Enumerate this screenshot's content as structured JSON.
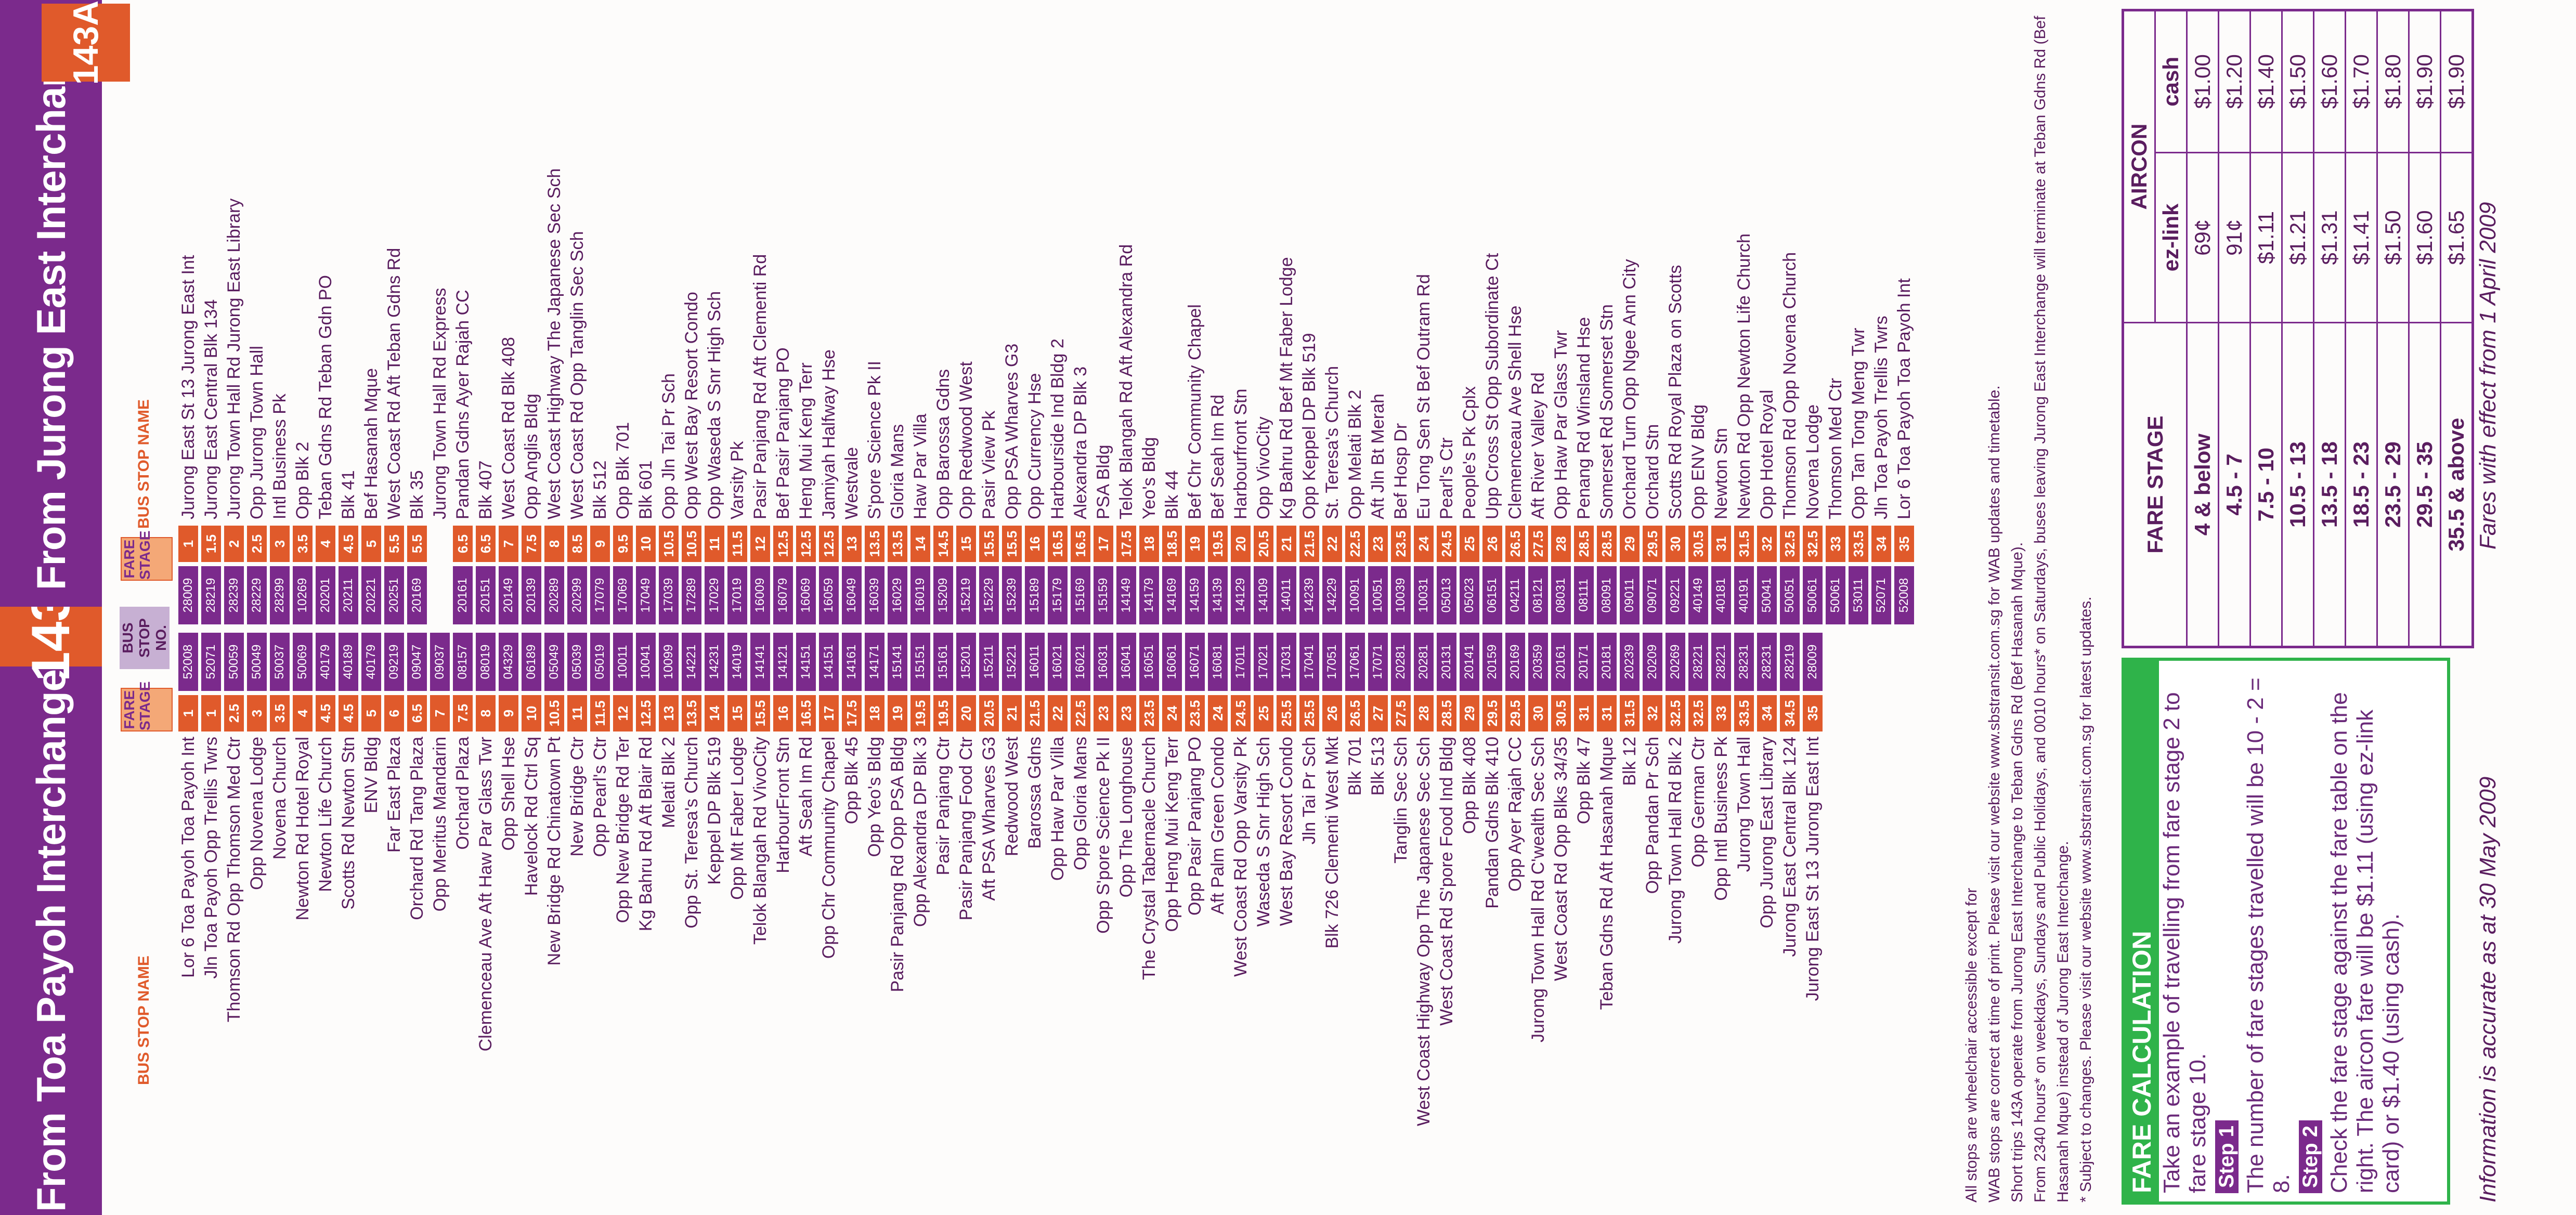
{
  "header": {
    "left_title": "From Toa Payoh Interchange",
    "route_number": "143",
    "right_title": "From Jurong East Interchange",
    "badge_143a": "143A"
  },
  "columns": {
    "bus_stop_name": "BUS STOP NAME",
    "fare_stage": "FARE STAGE",
    "bus_stop_no": "BUS STOP NO."
  },
  "stops": [
    {
      "left": "Lor 6 Toa Payoh Toa Payoh Int",
      "ls": "1",
      "no": "52008",
      "no2": "28009",
      "rs": "1",
      "right": "Jurong East St 13 Jurong East Int"
    },
    {
      "left": "Jln Toa Payoh Opp Trellis Twrs",
      "ls": "1",
      "no": "52071",
      "no2": "28219",
      "rs": "1.5",
      "right": "Jurong East Central Blk 134"
    },
    {
      "left": "Thomson Rd Opp Thomson Med Ctr",
      "ls": "2.5",
      "no": "50059",
      "no2": "28239",
      "rs": "2",
      "right": "Jurong Town Hall Rd Jurong East Library"
    },
    {
      "left": "Opp Novena Lodge",
      "ls": "3",
      "no": "50049",
      "no2": "28229",
      "rs": "2.5",
      "right": "Opp Jurong Town Hall"
    },
    {
      "left": "Novena Church",
      "ls": "3.5",
      "no": "50037",
      "no2": "28299",
      "rs": "3",
      "right": "Intl Business Pk"
    },
    {
      "left": "Newton Rd Hotel Royal",
      "ls": "4",
      "no": "50069",
      "no2": "10269",
      "rs": "3.5",
      "right": "Opp Blk 2"
    },
    {
      "left": "Newton Life Church",
      "ls": "4.5",
      "no": "40179",
      "no2": "20201",
      "rs": "4",
      "right": "Teban Gdns Rd Teban Gdn PO"
    },
    {
      "left": "Scotts Rd Newton Stn",
      "ls": "4.5",
      "no": "40189",
      "no2": "20211",
      "rs": "4.5",
      "right": "Blk 41"
    },
    {
      "left": "ENV Bldg",
      "ls": "5",
      "no": "40179",
      "no2": "20221",
      "rs": "5",
      "right": "Bef Hasanah Mque"
    },
    {
      "left": "Far East Plaza",
      "ls": "6",
      "no": "09219",
      "no2": "20251",
      "rs": "5.5",
      "right": "West Coast Rd Aft Teban Gdns Rd"
    },
    {
      "left": "Orchard Rd Tang Plaza",
      "ls": "6.5",
      "no": "09047",
      "no2": "20169",
      "rs": "5.5",
      "right": "Blk 35"
    },
    {
      "left": "Opp Meritus Mandarin",
      "ls": "7",
      "no": "09037",
      "no2": "",
      "rs": "",
      "right": "Jurong Town Hall Rd Express"
    },
    {
      "left": "Orchard Plaza",
      "ls": "7.5",
      "no": "08157",
      "no2": "20161",
      "rs": "6.5",
      "right": "Pandan Gdns Ayer Rajah CC"
    },
    {
      "left": "Clemenceau Ave Aft Haw Par Glass Twr",
      "ls": "8",
      "no": "08019",
      "no2": "20151",
      "rs": "6.5",
      "right": "Blk 407"
    },
    {
      "left": "Opp Shell Hse",
      "ls": "9",
      "no": "04329",
      "no2": "20149",
      "rs": "7",
      "right": "West Coast Rd Blk 408"
    },
    {
      "left": "Havelock Rd Ctrl Sq",
      "ls": "10",
      "no": "06189",
      "no2": "20139",
      "rs": "7.5",
      "right": "Opp Anglis Bldg"
    },
    {
      "left": "New Bridge Rd Chinatown Pt",
      "ls": "10.5",
      "no": "05049",
      "no2": "20289",
      "rs": "8",
      "right": "West Coast Highway The Japanese Sec Sch"
    },
    {
      "left": "New Bridge Ctr",
      "ls": "11",
      "no": "05039",
      "no2": "20299",
      "rs": "8.5",
      "right": "West Coast Rd Opp Tanglin Sec Sch"
    },
    {
      "left": "Opp Pearl's Ctr",
      "ls": "11.5",
      "no": "05019",
      "no2": "17079",
      "rs": "9",
      "right": "Blk 512"
    },
    {
      "left": "Opp New Bridge Rd Ter",
      "ls": "12",
      "no": "10011",
      "no2": "17069",
      "rs": "9.5",
      "right": "Opp Blk 701"
    },
    {
      "left": "Kg Bahru Rd Aft Blair Rd",
      "ls": "12.5",
      "no": "10041",
      "no2": "17049",
      "rs": "10",
      "right": "Blk 601"
    },
    {
      "left": "Melati Blk 2",
      "ls": "13",
      "no": "10099",
      "no2": "17039",
      "rs": "10.5",
      "right": "Opp Jln Tai Pr Sch"
    },
    {
      "left": "Opp St. Teresa's Church",
      "ls": "13.5",
      "no": "14221",
      "no2": "17289",
      "rs": "10.5",
      "right": "Opp West Bay Resort Condo"
    },
    {
      "left": "Keppel DP Blk 519",
      "ls": "14",
      "no": "14231",
      "no2": "17029",
      "rs": "11",
      "right": "Opp Waseda S Snr High Sch"
    },
    {
      "left": "Opp Mt Faber Lodge",
      "ls": "15",
      "no": "14019",
      "no2": "17019",
      "rs": "11.5",
      "right": "Varsity Pk"
    },
    {
      "left": "Telok Blangah Rd VivoCity",
      "ls": "15.5",
      "no": "14141",
      "no2": "16009",
      "rs": "12",
      "right": "Pasir Panjang Rd Aft Clementi Rd"
    },
    {
      "left": "HarbourFront Stn",
      "ls": "16",
      "no": "14121",
      "no2": "16079",
      "rs": "12.5",
      "right": "Bef Pasir Panjang PO"
    },
    {
      "left": "Aft Seah Im Rd",
      "ls": "16.5",
      "no": "14151",
      "no2": "16069",
      "rs": "12.5",
      "right": "Heng Mui Keng Terr"
    },
    {
      "left": "Opp Chr Community Chapel",
      "ls": "17",
      "no": "14151",
      "no2": "16059",
      "rs": "12.5",
      "right": "Jamiyah Halfway Hse"
    },
    {
      "left": "Opp Blk 45",
      "ls": "17.5",
      "no": "14161",
      "no2": "16049",
      "rs": "13",
      "right": "Westvale"
    },
    {
      "left": "Opp Yeo's Bldg",
      "ls": "18",
      "no": "14171",
      "no2": "16039",
      "rs": "13.5",
      "right": "S'pore Science Pk II"
    },
    {
      "left": "Pasir Panjang Rd Opp PSA Bldg",
      "ls": "19",
      "no": "15141",
      "no2": "16029",
      "rs": "13.5",
      "right": "Gloria Mans"
    },
    {
      "left": "Opp Alexandra DP Blk 3",
      "ls": "19.5",
      "no": "15151",
      "no2": "16019",
      "rs": "14",
      "right": "Haw Par Villa"
    },
    {
      "left": "Pasir Panjang Ctr",
      "ls": "19.5",
      "no": "15161",
      "no2": "15209",
      "rs": "14.5",
      "right": "Opp Barossa Gdns"
    },
    {
      "left": "Pasir Panjang Food Ctr",
      "ls": "20",
      "no": "15201",
      "no2": "15219",
      "rs": "15",
      "right": "Opp Redwood West"
    },
    {
      "left": "Aft PSA Wharves G3",
      "ls": "20.5",
      "no": "15211",
      "no2": "15229",
      "rs": "15.5",
      "right": "Pasir View Pk"
    },
    {
      "left": "Redwood West",
      "ls": "21",
      "no": "15221",
      "no2": "15239",
      "rs": "15.5",
      "right": "Opp PSA Wharves G3"
    },
    {
      "left": "Barossa Gdns",
      "ls": "21.5",
      "no": "16011",
      "no2": "15189",
      "rs": "16",
      "right": "Opp Currency Hse"
    },
    {
      "left": "Opp Haw Par Villa",
      "ls": "22",
      "no": "16021",
      "no2": "15179",
      "rs": "16.5",
      "right": "Harbourside Ind Bldg 2"
    },
    {
      "left": "Opp Gloria Mans",
      "ls": "22.5",
      "no": "16021",
      "no2": "15169",
      "rs": "16.5",
      "right": "Alexandra DP Blk 3"
    },
    {
      "left": "Opp S'pore Science Pk II",
      "ls": "23",
      "no": "16031",
      "no2": "15159",
      "rs": "17",
      "right": "PSA Bldg"
    },
    {
      "left": "Opp The Longhouse",
      "ls": "23",
      "no": "16041",
      "no2": "14149",
      "rs": "17.5",
      "right": "Telok Blangah Rd Aft Alexandra Rd"
    },
    {
      "left": "The Crystal Tabernacle Church",
      "ls": "23.5",
      "no": "16051",
      "no2": "14179",
      "rs": "18",
      "right": "Yeo's Bldg"
    },
    {
      "left": "Opp Heng Mui Keng Terr",
      "ls": "24",
      "no": "16061",
      "no2": "14169",
      "rs": "18.5",
      "right": "Blk 44"
    },
    {
      "left": "Opp Pasir Panjang PO",
      "ls": "23.5",
      "no": "16071",
      "no2": "14159",
      "rs": "19",
      "right": "Bef Chr Community Chapel"
    },
    {
      "left": "Aft Palm Green Condo",
      "ls": "24",
      "no": "16081",
      "no2": "14139",
      "rs": "19.5",
      "right": "Bef Seah Im Rd"
    },
    {
      "left": "West Coast Rd Opp Varsity Pk",
      "ls": "24.5",
      "no": "17011",
      "no2": "14129",
      "rs": "20",
      "right": "Harbourfront Stn"
    },
    {
      "left": "Waseda S Snr High Sch",
      "ls": "25",
      "no": "17021",
      "no2": "14109",
      "rs": "20.5",
      "right": "Opp VivoCity"
    },
    {
      "left": "West Bay Resort Condo",
      "ls": "25.5",
      "no": "17031",
      "no2": "14011",
      "rs": "21",
      "right": "Kg Bahru Rd Bef Mt Faber Lodge"
    },
    {
      "left": "Jln Tai Pr Sch",
      "ls": "25.5",
      "no": "17041",
      "no2": "14239",
      "rs": "21.5",
      "right": "Opp Keppel DP Blk 519"
    },
    {
      "left": "Blk 726 Clementi West Mkt",
      "ls": "26",
      "no": "17051",
      "no2": "14229",
      "rs": "22",
      "right": "St. Teresa's Church"
    },
    {
      "left": "Blk 701",
      "ls": "26.5",
      "no": "17061",
      "no2": "10091",
      "rs": "22.5",
      "right": "Opp Melati Blk 2"
    },
    {
      "left": "Blk 513",
      "ls": "27",
      "no": "17071",
      "no2": "10051",
      "rs": "23",
      "right": "Aft Jln Bt Merah"
    },
    {
      "left": "Tanglin Sec Sch",
      "ls": "27.5",
      "no": "20281",
      "no2": "10039",
      "rs": "23.5",
      "right": "Bef Hosp Dr"
    },
    {
      "left": "West Coast Highway Opp The Japanese Sec Sch",
      "ls": "28",
      "no": "20281",
      "no2": "10031",
      "rs": "24",
      "right": "Eu Tong Sen St Bef Outram Rd"
    },
    {
      "left": "West Coast Rd S'pore Food Ind Bldg",
      "ls": "28.5",
      "no": "20131",
      "no2": "05013",
      "rs": "24.5",
      "right": "Pearl's Ctr"
    },
    {
      "left": "Opp Blk 408",
      "ls": "29",
      "no": "20141",
      "no2": "05023",
      "rs": "25",
      "right": "People's Pk Cplx"
    },
    {
      "left": "Pandan Gdns Blk 410",
      "ls": "29.5",
      "no": "20159",
      "no2": "06151",
      "rs": "26",
      "right": "Upp Cross St Opp Subordinate Ct"
    },
    {
      "left": "Opp Ayer Rajah CC",
      "ls": "29.5",
      "no": "20169",
      "no2": "04211",
      "rs": "26.5",
      "right": "Clemenceau Ave Shell Hse"
    },
    {
      "left": "Jurong Town Hall Rd C'wealth Sec Sch",
      "ls": "30",
      "no": "20359",
      "no2": "08121",
      "rs": "27.5",
      "right": "Aft River Valley Rd"
    },
    {
      "left": "West Coast Rd Opp Blks 34/35",
      "ls": "30.5",
      "no": "20161",
      "no2": "08031",
      "rs": "28",
      "right": "Opp Haw Par Glass Twr"
    },
    {
      "left": "Opp Blk 47",
      "ls": "31",
      "no": "20171",
      "no2": "08111",
      "rs": "28.5",
      "right": "Penang Rd Winsland Hse"
    },
    {
      "left": "Teban Gdns Rd Aft Hasanah Mque",
      "ls": "31",
      "no": "20181",
      "no2": "08091",
      "rs": "28.5",
      "right": "Somerset Rd Somerset Stn"
    },
    {
      "left": "Blk 12",
      "ls": "31.5",
      "no": "20239",
      "no2": "09011",
      "rs": "29",
      "right": "Orchard Turn Opp Ngee Ann City"
    },
    {
      "left": "Opp Pandan Pr Sch",
      "ls": "32",
      "no": "20209",
      "no2": "09071",
      "rs": "29.5",
      "right": "Orchard Stn"
    },
    {
      "left": "Jurong Town Hall Rd Blk 2",
      "ls": "32.5",
      "no": "20269",
      "no2": "09221",
      "rs": "30",
      "right": "Scotts Rd Royal Plaza on Scotts"
    },
    {
      "left": "Opp German Ctr",
      "ls": "32.5",
      "no": "28221",
      "no2": "40149",
      "rs": "30.5",
      "right": "Opp ENV Bldg"
    },
    {
      "left": "Opp Intl Business Pk",
      "ls": "33",
      "no": "28221",
      "no2": "40181",
      "rs": "31",
      "right": "Newton Stn"
    },
    {
      "left": "Jurong Town Hall",
      "ls": "33.5",
      "no": "28231",
      "no2": "40191",
      "rs": "31.5",
      "right": "Newton Rd Opp Newton Life Church"
    },
    {
      "left": "Opp Jurong East Library",
      "ls": "34",
      "no": "28231",
      "no2": "50041",
      "rs": "32",
      "right": "Opp Hotel Royal"
    },
    {
      "left": "Jurong East Central Blk 124",
      "ls": "34.5",
      "no": "28219",
      "no2": "50051",
      "rs": "32.5",
      "right": "Thomson Rd Opp Novena Church"
    },
    {
      "left": "Jurong East St 13 Jurong East Int",
      "ls": "35",
      "no": "28009",
      "no2": "50061",
      "rs": "32.5",
      "right": "Novena Lodge"
    },
    {
      "left": "",
      "ls": "",
      "no": "",
      "no2": "50061",
      "rs": "33",
      "right": "Thomson Med Ctr"
    },
    {
      "left": "",
      "ls": "",
      "no": "",
      "no2": "53011",
      "rs": "33.5",
      "right": "Opp Tan Tong Meng Twr"
    },
    {
      "left": "",
      "ls": "",
      "no": "",
      "no2": "52071",
      "rs": "34",
      "right": "Jln Toa Payoh Trellis Twrs"
    },
    {
      "left": "",
      "ls": "",
      "no": "",
      "no2": "52008",
      "rs": "35",
      "right": "Lor 6 Toa Payoh Toa Payoh Int"
    }
  ],
  "notes": [
    "All stops are wheelchair accessible except for",
    "WAB stops are correct at time of print. Please visit our website www.sbstransit.com.sg for WAB updates and timetable.",
    "Short trips 143A operate from Jurong East Interchange to Teban Gdns Rd (Bef Hasanah Mque).",
    "From 2340 hours* on weekdays, Sundays and Public Holidays, and 0010 hours* on Saturdays, buses leaving Jurong East Interchange will terminate at Teban Gdns Rd (Bef Hasanah Mque) instead of Jurong East Interchange.",
    "* Subject to changes. Please visit our website www.sbstransit.com.sg for latest updates."
  ],
  "fare_calc": {
    "title": "FARE CALCULATION",
    "intro": "Take an example of travelling from fare stage 2 to fare stage 10.",
    "step1_label": "Step 1",
    "step1_text": "The number of fare stages travelled will be 10 - 2 = 8.",
    "step2_label": "Step 2",
    "step2_text": "Check the fare stage against the fare table on the right. The aircon fare will be $1.11 (using ez-link card) or $1.40 (using cash)."
  },
  "fare_table": {
    "head_stage": "FARE STAGE",
    "head_aircon": "AIRCON",
    "head_ezlink": "ez-link",
    "head_cash": "cash",
    "rows": [
      {
        "stage": "4 & below",
        "ez": "69¢",
        "cash": "$1.00"
      },
      {
        "stage": "4.5 - 7",
        "ez": "91¢",
        "cash": "$1.20"
      },
      {
        "stage": "7.5 - 10",
        "ez": "$1.11",
        "cash": "$1.40"
      },
      {
        "stage": "10.5 - 13",
        "ez": "$1.21",
        "cash": "$1.50"
      },
      {
        "stage": "13.5 - 18",
        "ez": "$1.31",
        "cash": "$1.60"
      },
      {
        "stage": "18.5 - 23",
        "ez": "$1.41",
        "cash": "$1.70"
      },
      {
        "stage": "23.5 - 29",
        "ez": "$1.50",
        "cash": "$1.80"
      },
      {
        "stage": "29.5 - 35",
        "ez": "$1.60",
        "cash": "$1.90"
      },
      {
        "stage": "35.5 & above",
        "ez": "$1.65",
        "cash": "$1.90"
      }
    ]
  },
  "footer": {
    "accurate": "Information is accurate as at 30 May 2009",
    "effective": "Fares with effect from 1 April 2009"
  }
}
